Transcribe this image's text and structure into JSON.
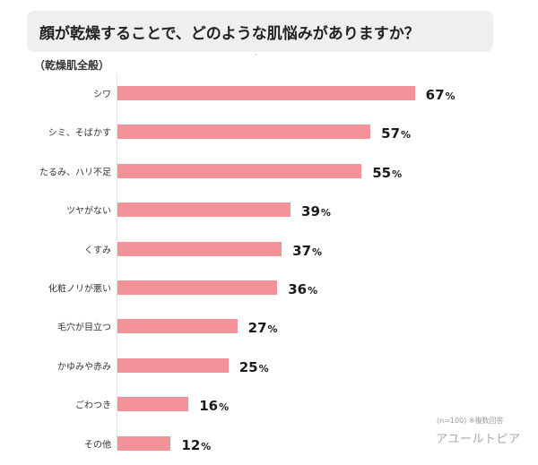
{
  "header": {
    "title": "顔が乾燥することで、どのような肌悩みがありますか？",
    "subtitle": "（乾燥肌全般）",
    "stray_mark": "ˊ"
  },
  "chart_data": {
    "type": "bar",
    "orientation": "horizontal",
    "categories": [
      "シワ",
      "シミ、そばかす",
      "たるみ、ハリ不足",
      "ツヤがない",
      "くすみ",
      "化粧ノリが悪い",
      "毛穴が目立つ",
      "かゆみや赤み",
      "ごわつき",
      "その他"
    ],
    "values": [
      67,
      57,
      55,
      39,
      37,
      36,
      27,
      25,
      16,
      12
    ],
    "value_labels": [
      "67",
      "57",
      "55",
      "39",
      "37",
      "36",
      "27",
      "25",
      "16",
      "12"
    ],
    "unit": "%",
    "xlim": [
      0,
      100
    ],
    "bar_color": "#f4929a",
    "grid": false,
    "legend": "none"
  },
  "footer": {
    "note": "(n=100) ※複数回答",
    "brand": "アユールトピア"
  }
}
